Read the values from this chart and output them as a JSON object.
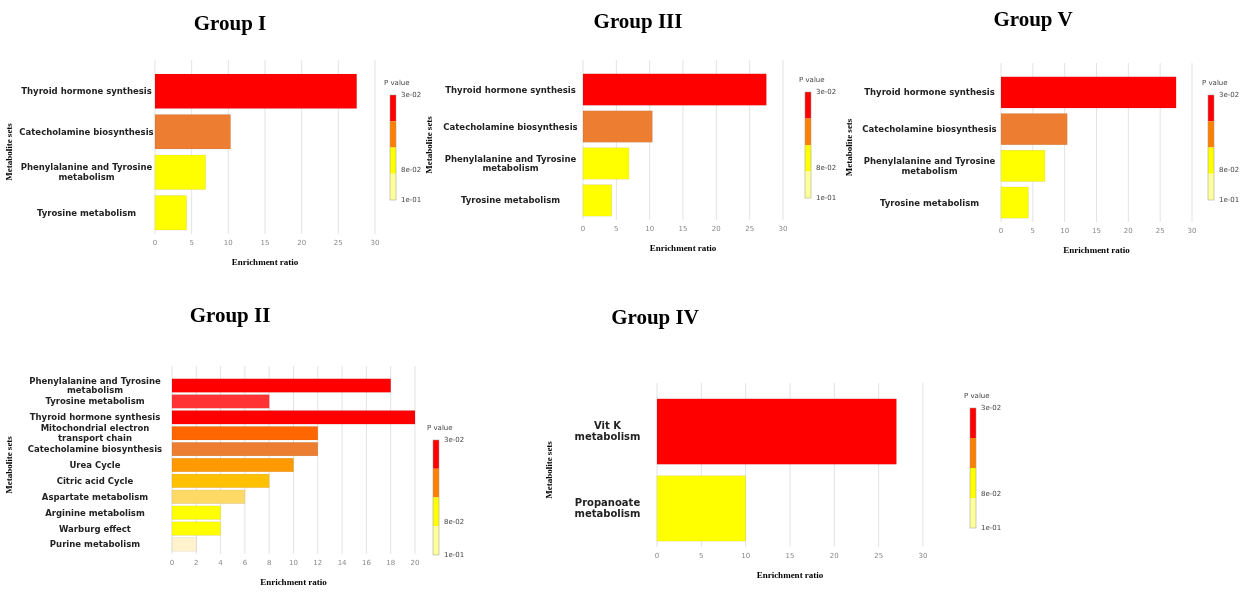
{
  "chart_data": [
    {
      "type": "bar",
      "orientation": "horizontal",
      "title": "Group I",
      "xlabel": "Enrichment ratio",
      "ylabel": "Metabolite sets",
      "categories": [
        "Thyroid hormone synthesis",
        "Catecholamine biosynthesis",
        "Phenylalanine and Tyrosine metabolism",
        "Tyrosine metabolism"
      ],
      "values": [
        27.5,
        10.3,
        6.9,
        4.3
      ],
      "colors": [
        "#ff0000",
        "#ed7d31",
        "#ffff00",
        "#ffff00"
      ],
      "xlim": [
        0,
        30
      ],
      "xticks": [
        0,
        5,
        10,
        15,
        20,
        25,
        30
      ],
      "grid": "x",
      "clabel": "P value",
      "clim": [
        0.03,
        0.1
      ],
      "cticks": [
        {
          "value": 0.03,
          "label": "3e-02"
        },
        {
          "value": 0.08,
          "label": "8e-02"
        },
        {
          "value": 0.1,
          "label": "1e-01"
        }
      ]
    },
    {
      "type": "bar",
      "orientation": "horizontal",
      "title": "Group III",
      "xlabel": "Enrichment ratio",
      "ylabel": "Metabolite sets",
      "categories": [
        "Thyroid hormone synthesis",
        "Catecholamine biosynthesis",
        "Phenylalanine and Tyrosine metabolism",
        "Tyrosine metabolism"
      ],
      "values": [
        27.5,
        10.4,
        6.9,
        4.3
      ],
      "colors": [
        "#ff0000",
        "#ed7d31",
        "#ffff00",
        "#ffff00"
      ],
      "xlim": [
        0,
        30
      ],
      "xticks": [
        0,
        5,
        10,
        15,
        20,
        25,
        30
      ],
      "grid": "x",
      "clabel": "P value",
      "clim": [
        0.03,
        0.1
      ],
      "cticks": [
        {
          "value": 0.03,
          "label": "3e-02"
        },
        {
          "value": 0.08,
          "label": "8e-02"
        },
        {
          "value": 0.1,
          "label": "1e-01"
        }
      ]
    },
    {
      "type": "bar",
      "orientation": "horizontal",
      "title": "Group V",
      "xlabel": "Enrichment ratio",
      "ylabel": "Metabolite sets",
      "categories": [
        "Thyroid hormone synthesis",
        "Catecholamine biosynthesis",
        "Phenylalanine and Tyrosine metabolism",
        "Tyrosine metabolism"
      ],
      "values": [
        27.5,
        10.4,
        6.9,
        4.3
      ],
      "colors": [
        "#ff0000",
        "#ed7d31",
        "#ffff00",
        "#ffff00"
      ],
      "xlim": [
        0,
        30
      ],
      "xticks": [
        0,
        5,
        10,
        15,
        20,
        25,
        30
      ],
      "grid": "x",
      "clabel": "P value",
      "clim": [
        0.03,
        0.1
      ],
      "cticks": [
        {
          "value": 0.03,
          "label": "3e-02"
        },
        {
          "value": 0.08,
          "label": "8e-02"
        },
        {
          "value": 0.1,
          "label": "1e-01"
        }
      ]
    },
    {
      "type": "bar",
      "orientation": "horizontal",
      "title": "Group II",
      "xlabel": "Enrichment ratio",
      "ylabel": "Metabolite sets",
      "categories": [
        "Phenylalanine and Tyrosine metabolism",
        "Tyrosine metabolism",
        "Thyroid hormone synthesis",
        "Mitochondrial electron transport chain",
        "Catecholamine biosynthesis",
        "Urea Cycle",
        "Citric acid Cycle",
        "Aspartate metabolism",
        "Arginine metabolism",
        "Warburg effect",
        "Purine metabolism"
      ],
      "values": [
        18,
        8,
        20,
        12,
        12,
        10,
        8,
        6,
        4,
        4,
        2
      ],
      "colors": [
        "#ff0000",
        "#ff3333",
        "#ff0000",
        "#ff6600",
        "#ed7d31",
        "#ff9900",
        "#ffc000",
        "#ffd966",
        "#ffff00",
        "#ffff00",
        "#fff2cc"
      ],
      "xlim": [
        0,
        20
      ],
      "xticks": [
        0,
        2,
        4,
        6,
        8,
        10,
        12,
        14,
        16,
        18,
        20
      ],
      "grid": "x",
      "clabel": "P value",
      "clim": [
        0.03,
        0.1
      ],
      "cticks": [
        {
          "value": 0.03,
          "label": "3e-02"
        },
        {
          "value": 0.08,
          "label": "8e-02"
        },
        {
          "value": 0.1,
          "label": "1e-01"
        }
      ]
    },
    {
      "type": "bar",
      "orientation": "horizontal",
      "title": "Group IV",
      "xlabel": "Enrichment ratio",
      "ylabel": "Metabolite sets",
      "categories": [
        "Vit K metabolism",
        "Propanoate metabolism"
      ],
      "values": [
        27,
        10
      ],
      "colors": [
        "#ff0000",
        "#ffff00"
      ],
      "xlim": [
        0,
        30
      ],
      "xticks": [
        0,
        5,
        10,
        15,
        20,
        25,
        30
      ],
      "grid": "x",
      "clabel": "P value",
      "clim": [
        0.03,
        0.1
      ],
      "cticks": [
        {
          "value": 0.03,
          "label": "3e-02"
        },
        {
          "value": 0.08,
          "label": "8e-02"
        },
        {
          "value": 0.1,
          "label": "1e-01"
        }
      ]
    }
  ]
}
